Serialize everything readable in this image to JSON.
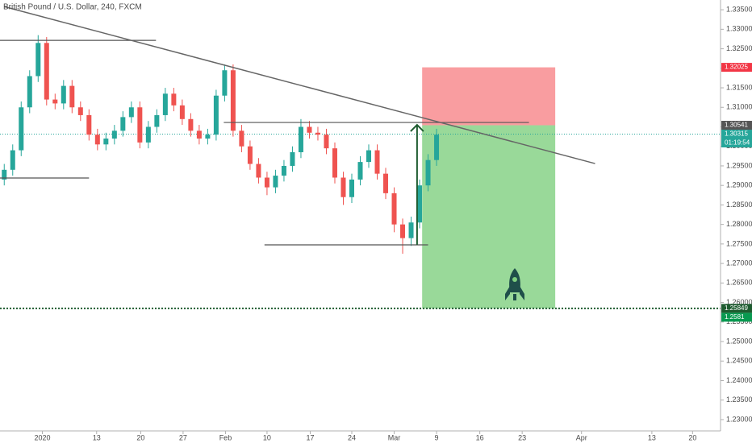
{
  "chart_data": {
    "type": "candlestick",
    "title": "British Pound / U.S. Dollar, 240, FXCM",
    "up_color": "#26a69a",
    "down_color": "#ef5350",
    "x": [
      0.5,
      1.5,
      2.5,
      3.5,
      4.5,
      5.5,
      6.5,
      7.5,
      8.5,
      9.5,
      10.5,
      11.5,
      12.5,
      13.5,
      14.5,
      15.5,
      16.5,
      17.5,
      18.5,
      19.5,
      20.5,
      21.5,
      22.5,
      23.5,
      24.5,
      25.5,
      26.5,
      27.5,
      28.5,
      29.5,
      30.5,
      31.5,
      32.5,
      33.5,
      34.5,
      35.5,
      36.5,
      37.5,
      38.5,
      39.5,
      40.5,
      41.5,
      42.5,
      43.5,
      44.5,
      45.5,
      46.5,
      47.5,
      48.5,
      49.5,
      50.5,
      51.5
    ],
    "open": [
      1.2915,
      1.294,
      1.299,
      1.31,
      1.318,
      1.3265,
      1.312,
      1.311,
      1.3155,
      1.31,
      1.308,
      1.303,
      1.3005,
      1.302,
      1.304,
      1.3075,
      1.31,
      1.301,
      1.305,
      1.308,
      1.3135,
      1.3105,
      1.307,
      1.304,
      1.302,
      1.303,
      1.313,
      1.3195,
      1.304,
      1.3,
      1.2955,
      1.292,
      1.2895,
      1.2925,
      1.295,
      1.2985,
      1.305,
      1.3035,
      1.303,
      1.2995,
      1.292,
      1.287,
      1.2915,
      1.296,
      1.299,
      1.293,
      1.288,
      1.28,
      1.2765,
      1.2805,
      1.29,
      1.2965
    ],
    "high": [
      1.2955,
      1.3005,
      1.3115,
      1.3195,
      1.3285,
      1.328,
      1.3135,
      1.317,
      1.317,
      1.3115,
      1.3095,
      1.3045,
      1.3035,
      1.3055,
      1.309,
      1.3115,
      1.3115,
      1.3065,
      1.3095,
      1.315,
      1.315,
      1.312,
      1.3085,
      1.3055,
      1.3045,
      1.3145,
      1.321,
      1.321,
      1.3055,
      1.3015,
      1.297,
      1.2935,
      1.294,
      1.2965,
      1.3,
      1.307,
      1.3065,
      1.305,
      1.3045,
      1.301,
      1.2935,
      1.293,
      1.2975,
      1.3005,
      1.3005,
      1.2945,
      1.2895,
      1.2815,
      1.282,
      1.2915,
      1.298,
      1.3045
    ],
    "low": [
      1.29,
      1.2925,
      1.2975,
      1.3085,
      1.3165,
      1.3105,
      1.3095,
      1.3095,
      1.3085,
      1.3065,
      1.3015,
      1.299,
      1.299,
      1.3005,
      1.3025,
      1.306,
      1.2995,
      1.2995,
      1.3035,
      1.3065,
      1.309,
      1.3055,
      1.3025,
      1.3005,
      1.3005,
      1.3015,
      1.3115,
      1.3025,
      1.2985,
      1.294,
      1.2905,
      1.2875,
      1.288,
      1.291,
      1.2935,
      1.297,
      1.302,
      1.3015,
      1.298,
      1.2905,
      1.285,
      1.2855,
      1.29,
      1.2945,
      1.2915,
      1.2865,
      1.278,
      1.2725,
      1.2745,
      1.279,
      1.2885,
      1.295
    ],
    "close": [
      1.294,
      1.299,
      1.31,
      1.318,
      1.3265,
      1.312,
      1.311,
      1.3155,
      1.31,
      1.308,
      1.303,
      1.3005,
      1.302,
      1.304,
      1.3075,
      1.31,
      1.301,
      1.305,
      1.308,
      1.3135,
      1.3105,
      1.307,
      1.304,
      1.302,
      1.303,
      1.313,
      1.3195,
      1.304,
      1.3,
      1.2955,
      1.292,
      1.2895,
      1.2925,
      1.295,
      1.2985,
      1.305,
      1.3035,
      1.303,
      1.2995,
      1.292,
      1.287,
      1.2915,
      1.296,
      1.299,
      1.293,
      1.288,
      1.28,
      1.2765,
      1.2805,
      1.29,
      1.2965,
      1.303
    ],
    "xlim": [
      0,
      85
    ],
    "ylim": [
      1.2271,
      1.3375
    ],
    "xticks": [
      {
        "value": 5,
        "label": "2020"
      },
      {
        "value": 11.4,
        "label": "13"
      },
      {
        "value": 16.6,
        "label": "20"
      },
      {
        "value": 21.6,
        "label": "27"
      },
      {
        "value": 26.6,
        "label": "Feb"
      },
      {
        "value": 31.5,
        "label": "10"
      },
      {
        "value": 36.6,
        "label": "17"
      },
      {
        "value": 41.5,
        "label": "24"
      },
      {
        "value": 46.5,
        "label": "Mar"
      },
      {
        "value": 51.5,
        "label": "9"
      },
      {
        "value": 56.6,
        "label": "16"
      },
      {
        "value": 61.6,
        "label": "23"
      },
      {
        "value": 68.6,
        "label": "Apr"
      },
      {
        "value": 76.9,
        "label": "13"
      },
      {
        "value": 81.7,
        "label": "20"
      }
    ],
    "yticks": [
      {
        "value": 1.23,
        "label": "1.23000"
      },
      {
        "value": 1.235,
        "label": "1.23500"
      },
      {
        "value": 1.24,
        "label": "1.24000"
      },
      {
        "value": 1.245,
        "label": "1.24500"
      },
      {
        "value": 1.25,
        "label": "1.25000"
      },
      {
        "value": 1.255,
        "label": "1.25500"
      },
      {
        "value": 1.26,
        "label": "1.26000"
      },
      {
        "value": 1.265,
        "label": "1.26500"
      },
      {
        "value": 1.27,
        "label": "1.27000"
      },
      {
        "value": 1.275,
        "label": "1.27500"
      },
      {
        "value": 1.28,
        "label": "1.28000"
      },
      {
        "value": 1.285,
        "label": "1.28500"
      },
      {
        "value": 1.29,
        "label": "1.29000"
      },
      {
        "value": 1.295,
        "label": "1.29500"
      },
      {
        "value": 1.3,
        "label": "1.30000"
      },
      {
        "value": 1.305,
        "label": "1.30500"
      },
      {
        "value": 1.31,
        "label": "1.31000"
      },
      {
        "value": 1.315,
        "label": "1.31500"
      },
      {
        "value": 1.32,
        "label": "1.32000"
      },
      {
        "value": 1.325,
        "label": "1.32500"
      },
      {
        "value": 1.33,
        "label": "1.33000"
      },
      {
        "value": 1.335,
        "label": "1.33500"
      }
    ],
    "price_labels": [
      {
        "value": 1.32025,
        "color": "#f23645"
      },
      {
        "value": 1.30541,
        "color": "#555555"
      },
      {
        "value": 1.30315,
        "color": "#26a69a",
        "countdown": "01:19:54"
      },
      {
        "value": 1.25849,
        "color": "#1e5c30"
      },
      {
        "value": 1.2581,
        "color": "#089950"
      }
    ],
    "trendline": {
      "x": [
        0.5,
        70.2
      ],
      "y": [
        1.3358,
        1.2956
      ],
      "color": "#666666"
    },
    "levels": [
      {
        "x": [
          0,
          18.4
        ],
        "y": 1.32716
      },
      {
        "x": [
          0,
          10.5
        ],
        "y": 1.29189
      },
      {
        "x": [
          31.2,
          50.5
        ],
        "y": 1.27477
      },
      {
        "x": [
          26.4,
          62.4
        ],
        "y": 1.30612
      }
    ],
    "position": {
      "x": [
        49.8,
        65.5
      ],
      "stop": 1.32025,
      "entry": 1.30541,
      "target": 1.25849,
      "stop_color": "#f77c80",
      "target_color": "#7fcf7f"
    },
    "arrow": {
      "x": 49.2,
      "y": [
        1.2748,
        1.3055
      ],
      "color": "#1e5c30"
    }
  }
}
